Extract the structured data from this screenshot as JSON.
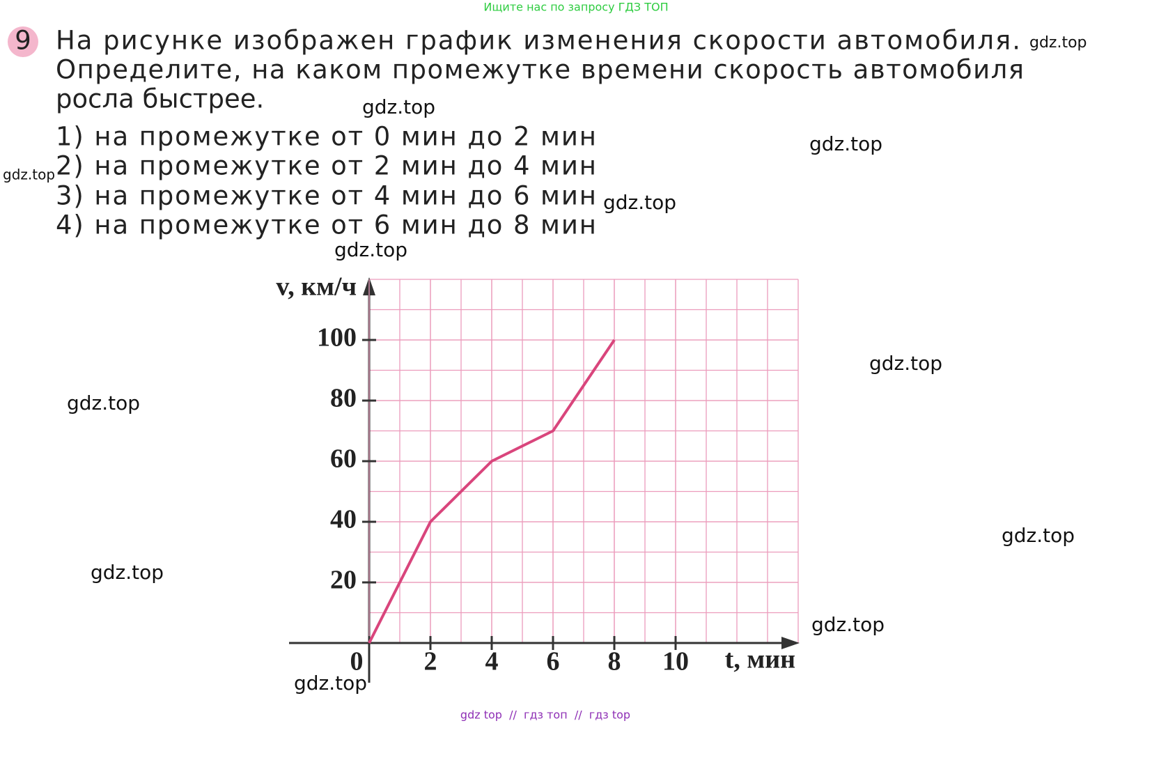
{
  "header": {
    "banner": "Ищите нас по запросу ГДЗ ТОП"
  },
  "problem": {
    "number": "9",
    "lines": [
      "На рисунке изображен график изменения скорости автомобиля.",
      "Определите, на каком промежутке времени скорость автомобиля",
      "росла быстрее."
    ],
    "options": [
      "1) на промежутке от 0 мин до 2 мин",
      "2) на промежутке от 2 мин до 4 мин",
      "3) на промежутке от 4 мин до 6 мин",
      "4) на промежутке от 6 мин до 8 мин"
    ]
  },
  "chart_data": {
    "type": "line",
    "x_label": "t, мин",
    "y_label": "v, км/ч",
    "x": [
      0,
      2,
      4,
      6,
      8
    ],
    "values": [
      0,
      40,
      60,
      70,
      100
    ],
    "color": "#d9457c",
    "xlim": [
      0,
      14
    ],
    "ylim": [
      0,
      120
    ],
    "xticks": [
      0,
      2,
      4,
      6,
      8,
      10
    ],
    "yticks": [
      20,
      40,
      60,
      80,
      100
    ],
    "grid": true,
    "grid_color": "#ec9cbc"
  },
  "watermarks": [
    "gdz.top",
    "gdz.top",
    "gdz.top",
    "gdz.top",
    "gdz.top",
    "gdz.top",
    "gdz.top",
    "gdz.top",
    "gdz.top",
    "gdz.top",
    "gdz.top",
    "gdz.top"
  ],
  "footer": "gdz top  //  гдз топ  //  гдз top"
}
